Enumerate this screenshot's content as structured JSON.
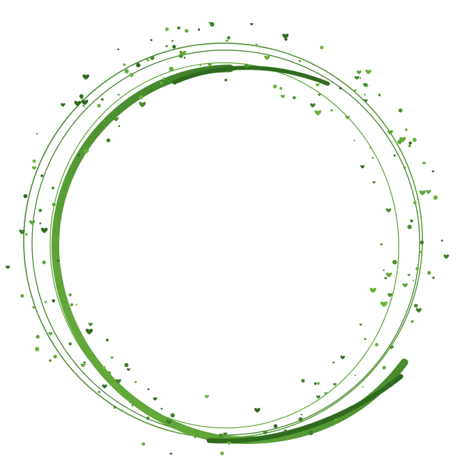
{
  "image": {
    "subject": "circle-frame",
    "style": "hand-drawn green rings with scattered hearts and dots",
    "colors": {
      "dark_green": "#2f6b1f",
      "mid_green": "#4a8f2f",
      "light_green": "#6db33f",
      "background": "#ffffff"
    }
  }
}
